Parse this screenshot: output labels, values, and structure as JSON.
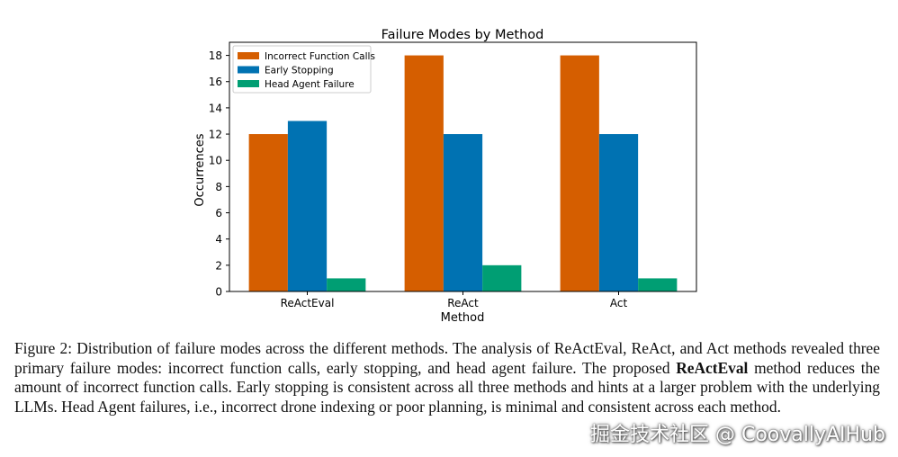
{
  "chart_data": {
    "type": "bar",
    "title": "Failure Modes by Method",
    "xlabel": "Method",
    "ylabel": "Occurrences",
    "categories": [
      "ReActEval",
      "ReAct",
      "Act"
    ],
    "series": [
      {
        "name": "Incorrect Function Calls",
        "color": "#d55e00",
        "values": [
          12,
          18,
          18
        ]
      },
      {
        "name": "Early Stopping",
        "color": "#0072b2",
        "values": [
          13,
          12,
          12
        ]
      },
      {
        "name": "Head Agent Failure",
        "color": "#009e73",
        "values": [
          1,
          2,
          1
        ]
      }
    ],
    "ylim": [
      0,
      19
    ],
    "yticks": [
      0,
      2,
      4,
      6,
      8,
      10,
      12,
      14,
      16,
      18
    ],
    "legend_position": "top-left",
    "grid": false
  },
  "caption": {
    "prefix": "Figure 2: Distribution of failure modes across the different methods. The analysis of ReActEval, ReAct, and Act methods revealed three primary failure modes: incorrect function calls, early stopping, and head agent failure. The proposed ",
    "emphasis": "ReActEval",
    "suffix": " method reduces the amount of incorrect function calls. Early stopping is consistent across all three methods and hints at a larger problem with the underlying LLMs. Head Agent failures, i.e., incorrect drone indexing or poor planning, is minimal and consistent across each method."
  },
  "watermark": "掘金技术社区 @ CoovallyAIHub"
}
